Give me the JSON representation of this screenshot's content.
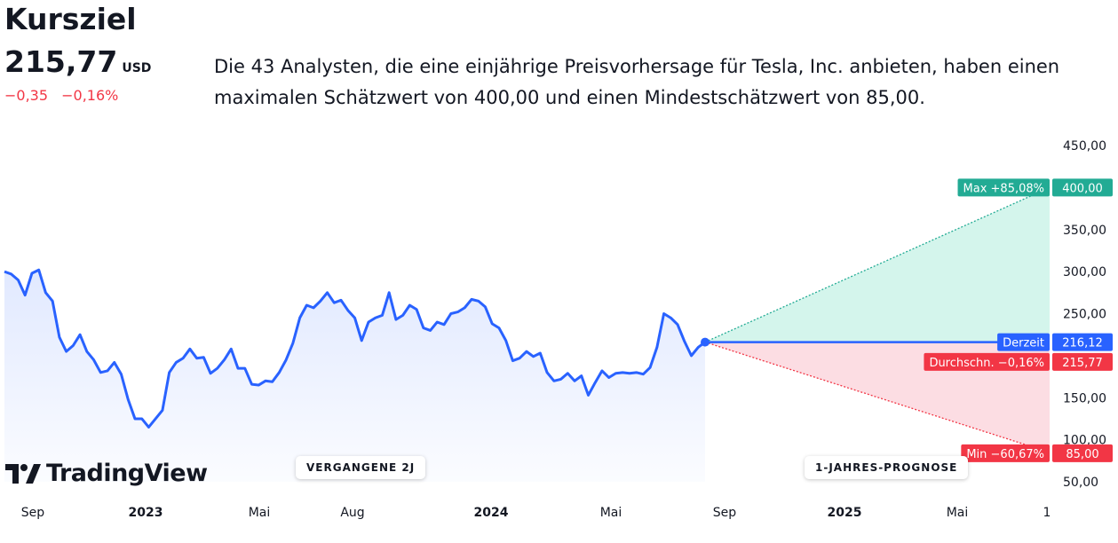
{
  "header": {
    "title": "Kursziel",
    "price": "215,77",
    "currency": "USD",
    "change_abs": "−0,35",
    "change_pct": "−0,16%",
    "description": "Die 43 Analysten, die eine einjährige Preisvorhersage für Tesla, Inc. anbieten, haben einen maximalen Schätzwert von 400,00 und einen Mindestschätzwert von 85,00."
  },
  "badges": {
    "past": "VERGANGENE 2J",
    "forecast": "1-JAHRES-PROGNOSE"
  },
  "logo": {
    "text": "TradingView",
    "icon": "tradingview-logo-icon"
  },
  "colors": {
    "line": "#2962ff",
    "max": "#22ab94",
    "min": "#f23645",
    "current": "#2962ff",
    "average": "#f23645",
    "max_fill": "#d4f5ec",
    "min_fill": "#fcdde3"
  },
  "chart_data": {
    "type": "line",
    "ylim": [
      50,
      460
    ],
    "y_ticks": [
      "450,00",
      "350,00",
      "300,00",
      "250,00",
      "150,00",
      "100,00",
      "50,00"
    ],
    "y_tick_values": [
      450,
      350,
      300,
      250,
      150,
      100,
      50
    ],
    "x_ticks": [
      {
        "label": "Sep",
        "bold": false
      },
      {
        "label": "2023",
        "bold": true
      },
      {
        "label": "Mai",
        "bold": false
      },
      {
        "label": "Aug",
        "bold": false
      },
      {
        "label": "2024",
        "bold": true
      },
      {
        "label": "Mai",
        "bold": false
      },
      {
        "label": "Sep",
        "bold": false
      },
      {
        "label": "2025",
        "bold": true
      },
      {
        "label": "Mai",
        "bold": false
      },
      {
        "label": "1",
        "bold": false
      }
    ],
    "series": [
      {
        "values": [
          300,
          297,
          290,
          272,
          298,
          302,
          275,
          265,
          222,
          205,
          212,
          225,
          205,
          195,
          180,
          182,
          192,
          178,
          148,
          125,
          125,
          115,
          125,
          135,
          180,
          192,
          197,
          208,
          197,
          198,
          179,
          185,
          195,
          208,
          185,
          185,
          166,
          165,
          170,
          169,
          180,
          195,
          215,
          245,
          260,
          257,
          265,
          275,
          263,
          266,
          254,
          245,
          218,
          240,
          245,
          248,
          275,
          243,
          248,
          260,
          255,
          233,
          230,
          240,
          237,
          250,
          252,
          257,
          267,
          265,
          258,
          238,
          233,
          218,
          194,
          197,
          205,
          199,
          203,
          180,
          170,
          172,
          179,
          170,
          176,
          153,
          168,
          182,
          174,
          179,
          180,
          179,
          180,
          178,
          186,
          210,
          250,
          245,
          237,
          217,
          200,
          210,
          216.12
        ]
      }
    ],
    "forecast": {
      "current": 216.12,
      "max": 400.0,
      "average": 215.77,
      "min": 85.0
    },
    "labels": {
      "max_label": "Max +85,08%",
      "max_value": "400,00",
      "current_label": "Derzeit",
      "current_value": "216,12",
      "avg_label": "Durchschn. −0,16%",
      "avg_value": "215,77",
      "min_label": "Min −60,67%",
      "min_value": "85,00"
    }
  }
}
